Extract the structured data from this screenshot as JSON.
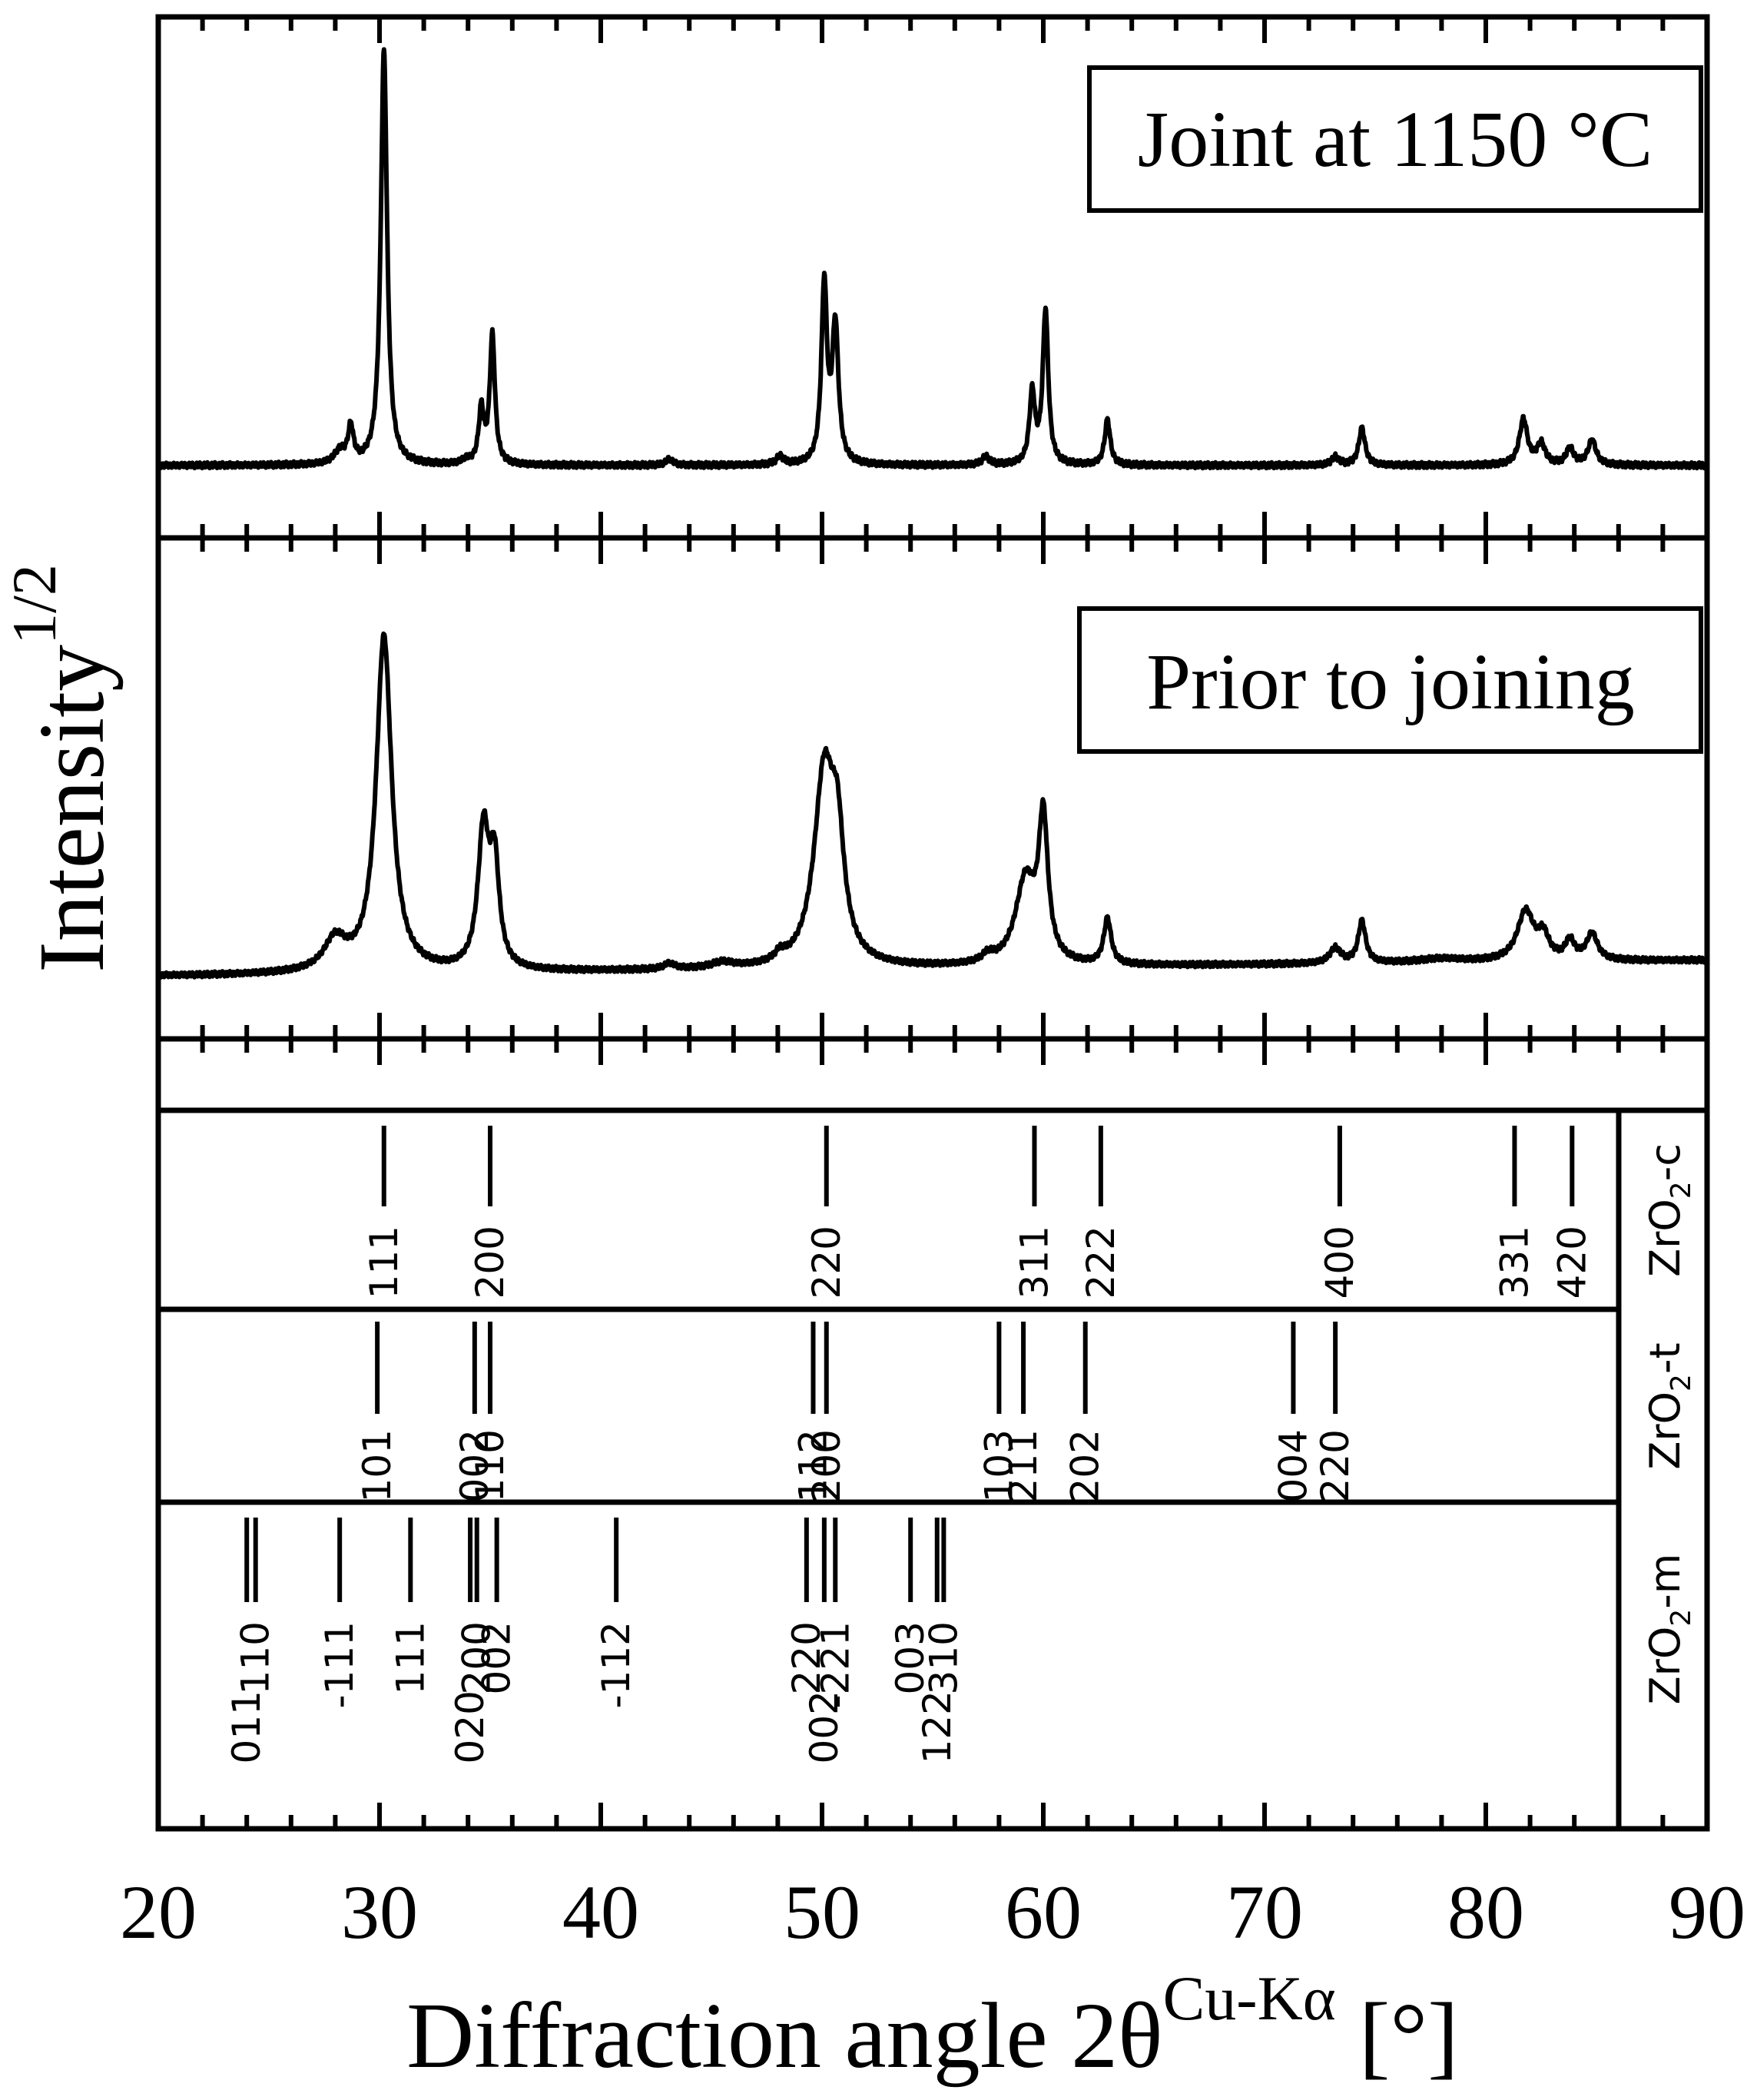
{
  "chart_data": {
    "type": "line",
    "xlabel": "Diffraction angle 2θ",
    "xlabel_superscript": "Cu-Kα",
    "xlabel_unit": "[°]",
    "ylabel": "Intensity",
    "ylabel_superscript": "1/2",
    "xlim": [
      20,
      90
    ],
    "x_tick_labels": [
      "20",
      "30",
      "40",
      "50",
      "60",
      "70",
      "80",
      "90"
    ],
    "x_ticks": [
      20,
      30,
      40,
      50,
      60,
      70,
      80,
      90
    ],
    "series": [
      {
        "name": "Joint at 1150 °C",
        "baseline": 0.03,
        "peaks": [
          {
            "x": 28.2,
            "h": 0.03,
            "w": 0.3
          },
          {
            "x": 28.7,
            "h": 0.085,
            "w": 0.15
          },
          {
            "x": 30.2,
            "h": 1.0,
            "w": 0.17
          },
          {
            "x": 33.9,
            "h": 0.01,
            "w": 0.2
          },
          {
            "x": 34.6,
            "h": 0.13,
            "w": 0.14
          },
          {
            "x": 35.1,
            "h": 0.31,
            "w": 0.14
          },
          {
            "x": 43.1,
            "h": 0.015,
            "w": 0.2
          },
          {
            "x": 48.1,
            "h": 0.02,
            "w": 0.2
          },
          {
            "x": 50.1,
            "h": 0.43,
            "w": 0.15
          },
          {
            "x": 50.6,
            "h": 0.33,
            "w": 0.17
          },
          {
            "x": 57.4,
            "h": 0.02,
            "w": 0.2
          },
          {
            "x": 59.5,
            "h": 0.17,
            "w": 0.15
          },
          {
            "x": 60.1,
            "h": 0.37,
            "w": 0.15
          },
          {
            "x": 62.9,
            "h": 0.11,
            "w": 0.15
          },
          {
            "x": 73.2,
            "h": 0.02,
            "w": 0.2
          },
          {
            "x": 74.4,
            "h": 0.09,
            "w": 0.17
          },
          {
            "x": 81.7,
            "h": 0.11,
            "w": 0.22
          },
          {
            "x": 82.5,
            "h": 0.05,
            "w": 0.22
          },
          {
            "x": 83.8,
            "h": 0.04,
            "w": 0.2
          },
          {
            "x": 84.8,
            "h": 0.06,
            "w": 0.22
          }
        ]
      },
      {
        "name": "Prior to joining",
        "baseline": 0.03,
        "peaks": [
          {
            "x": 28.0,
            "h": 0.08,
            "w": 0.6
          },
          {
            "x": 30.2,
            "h": 0.88,
            "w": 0.42
          },
          {
            "x": 34.7,
            "h": 0.36,
            "w": 0.3
          },
          {
            "x": 35.2,
            "h": 0.26,
            "w": 0.25
          },
          {
            "x": 43.1,
            "h": 0.015,
            "w": 0.3
          },
          {
            "x": 45.5,
            "h": 0.015,
            "w": 0.6
          },
          {
            "x": 48.1,
            "h": 0.02,
            "w": 0.25
          },
          {
            "x": 50.1,
            "h": 0.5,
            "w": 0.55
          },
          {
            "x": 50.7,
            "h": 0.26,
            "w": 0.35
          },
          {
            "x": 57.5,
            "h": 0.02,
            "w": 0.3
          },
          {
            "x": 59.2,
            "h": 0.22,
            "w": 0.55
          },
          {
            "x": 60.0,
            "h": 0.36,
            "w": 0.25
          },
          {
            "x": 62.9,
            "h": 0.12,
            "w": 0.2
          },
          {
            "x": 73.2,
            "h": 0.04,
            "w": 0.3
          },
          {
            "x": 74.4,
            "h": 0.11,
            "w": 0.2
          },
          {
            "x": 78.0,
            "h": 0.01,
            "w": 1.2
          },
          {
            "x": 81.8,
            "h": 0.13,
            "w": 0.45
          },
          {
            "x": 82.6,
            "h": 0.06,
            "w": 0.3
          },
          {
            "x": 83.8,
            "h": 0.05,
            "w": 0.25
          },
          {
            "x": 84.8,
            "h": 0.07,
            "w": 0.3
          }
        ]
      }
    ],
    "reference_patterns": [
      {
        "name_main": "ZrO",
        "name_sub": "2",
        "name_suffix": "-c",
        "lines": [
          {
            "x": 30.2,
            "label": "111"
          },
          {
            "x": 35.0,
            "label": "200"
          },
          {
            "x": 50.2,
            "label": "220"
          },
          {
            "x": 59.6,
            "label": "311"
          },
          {
            "x": 62.6,
            "label": "222"
          },
          {
            "x": 73.4,
            "label": "400"
          },
          {
            "x": 81.3,
            "label": "331"
          },
          {
            "x": 83.9,
            "label": "420"
          }
        ]
      },
      {
        "name_main": "ZrO",
        "name_sub": "2",
        "name_suffix": "-t",
        "lines": [
          {
            "x": 29.9,
            "label": "101"
          },
          {
            "x": 34.3,
            "label": "002"
          },
          {
            "x": 35.0,
            "label": "110"
          },
          {
            "x": 49.6,
            "label": "112"
          },
          {
            "x": 50.2,
            "label": "200"
          },
          {
            "x": 58.0,
            "label": "103"
          },
          {
            "x": 59.1,
            "label": "211"
          },
          {
            "x": 61.9,
            "label": "202"
          },
          {
            "x": 71.3,
            "label": "004"
          },
          {
            "x": 73.2,
            "label": "220"
          }
        ]
      },
      {
        "name_main": "ZrO",
        "name_sub": "2",
        "name_suffix": "-m",
        "lines": [
          {
            "x": 24.0,
            "label": "011",
            "row": 2
          },
          {
            "x": 24.4,
            "label": "110",
            "row": 1
          },
          {
            "x": 28.2,
            "label": "-111",
            "row": 1
          },
          {
            "x": 31.4,
            "label": "111",
            "row": 1
          },
          {
            "x": 34.1,
            "label": "020",
            "row": 2
          },
          {
            "x": 34.4,
            "label": "200",
            "row": 1
          },
          {
            "x": 35.3,
            "label": "002",
            "row": 1
          },
          {
            "x": 40.7,
            "label": "-112",
            "row": 1
          },
          {
            "x": 49.3,
            "label": "220",
            "row": 1
          },
          {
            "x": 50.1,
            "label": "002",
            "row": 2
          },
          {
            "x": 50.6,
            "label": "-221",
            "row": 1
          },
          {
            "x": 54.0,
            "label": "003",
            "row": 1
          },
          {
            "x": 55.2,
            "label": "122",
            "row": 2
          },
          {
            "x": 55.5,
            "label": "310",
            "row": 1
          }
        ]
      }
    ],
    "grid": false,
    "color": "#000000"
  }
}
